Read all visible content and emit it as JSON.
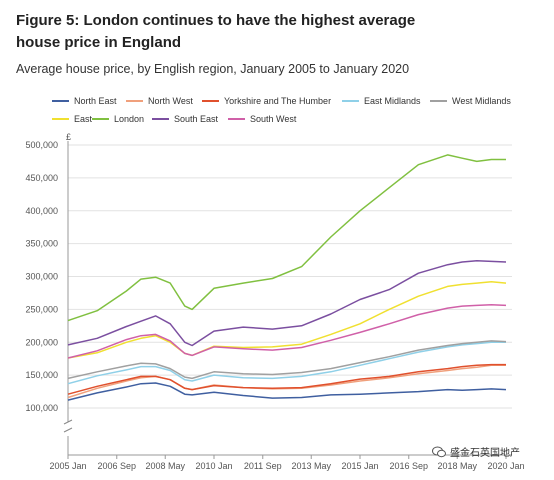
{
  "figure": {
    "title": "Figure 5: London continues to have the highest average house price in England",
    "subtitle": "Average house price, by English region, January 2005 to January 2020"
  },
  "watermark": {
    "text": "盛金石英国地产"
  },
  "chart_data": {
    "type": "line",
    "title": "Figure 5: London continues to have the highest average house price in England",
    "subtitle": "Average house price, by English region, January 2005 to January 2020",
    "ylabel": "£",
    "xlabel": "",
    "ylim": [
      100000,
      500000
    ],
    "y_axis_break": true,
    "y_ticks": [
      100000,
      150000,
      200000,
      250000,
      300000,
      350000,
      400000,
      450000,
      500000
    ],
    "y_tick_labels": [
      "100,000",
      "150,000",
      "200,000",
      "250,000",
      "300,000",
      "350,000",
      "400,000",
      "450,000",
      "500,000"
    ],
    "x_ticks": [
      2005.0,
      2006.67,
      2008.33,
      2010.0,
      2011.67,
      2013.33,
      2015.0,
      2016.67,
      2018.33,
      2020.0
    ],
    "x_tick_labels": [
      "2005 Jan",
      "2006 Sep",
      "2008 May",
      "2010 Jan",
      "2011 Sep",
      "2013 May",
      "2015 Jan",
      "2016 Sep",
      "2018 May",
      "2020 Jan"
    ],
    "xlim": [
      2005.0,
      2020.0
    ],
    "grid": "horizontal",
    "legend_position": "top",
    "x": [
      2005.0,
      2006.0,
      2007.0,
      2007.5,
      2008.0,
      2008.5,
      2009.0,
      2009.25,
      2010.0,
      2011.0,
      2012.0,
      2013.0,
      2014.0,
      2015.0,
      2016.0,
      2017.0,
      2018.0,
      2018.5,
      2019.0,
      2019.5,
      2020.0
    ],
    "series": [
      {
        "name": "North East",
        "color": "#3f5fa0",
        "values": [
          112000,
          123000,
          132000,
          137000,
          138000,
          133000,
          121000,
          120000,
          124000,
          119000,
          115000,
          116000,
          120000,
          121000,
          123000,
          125000,
          128000,
          127000,
          128000,
          129000,
          128000
        ]
      },
      {
        "name": "North West",
        "color": "#f0a07c",
        "values": [
          116000,
          130000,
          141000,
          146000,
          148000,
          143000,
          130000,
          128000,
          135000,
          131000,
          129000,
          130000,
          135000,
          141000,
          146000,
          152000,
          157000,
          160000,
          162000,
          165000,
          165000
        ]
      },
      {
        "name": "Yorkshire and The Humber",
        "color": "#e0502d",
        "values": [
          121000,
          133000,
          143000,
          148000,
          148000,
          143000,
          130000,
          128000,
          134000,
          131000,
          130000,
          131000,
          137000,
          144000,
          148000,
          155000,
          160000,
          163000,
          165000,
          166000,
          166000
        ]
      },
      {
        "name": "East Midlands",
        "color": "#8fd0e8",
        "values": [
          137000,
          149000,
          158000,
          163000,
          163000,
          157000,
          143000,
          141000,
          150000,
          146000,
          145000,
          148000,
          155000,
          165000,
          175000,
          185000,
          193000,
          196000,
          198000,
          200000,
          200000
        ]
      },
      {
        "name": "West Midlands",
        "color": "#a0a0a0",
        "values": [
          145000,
          155000,
          164000,
          168000,
          167000,
          160000,
          147000,
          145000,
          155000,
          152000,
          151000,
          154000,
          160000,
          169000,
          178000,
          188000,
          195000,
          198000,
          200000,
          202000,
          201000
        ]
      },
      {
        "name": "East",
        "color": "#f0e030",
        "values": [
          176000,
          184000,
          200000,
          206000,
          210000,
          200000,
          183000,
          180000,
          194000,
          192000,
          193000,
          197000,
          212000,
          228000,
          250000,
          270000,
          285000,
          288000,
          290000,
          292000,
          290000
        ]
      },
      {
        "name": "London",
        "color": "#80c040",
        "values": [
          233000,
          248000,
          278000,
          296000,
          299000,
          290000,
          255000,
          250000,
          282000,
          290000,
          297000,
          315000,
          360000,
          400000,
          435000,
          470000,
          485000,
          480000,
          475000,
          478000,
          478000
        ]
      },
      {
        "name": "South East",
        "color": "#7b4fa0",
        "values": [
          196000,
          206000,
          224000,
          232000,
          240000,
          228000,
          200000,
          195000,
          217000,
          223000,
          220000,
          225000,
          243000,
          265000,
          280000,
          305000,
          318000,
          322000,
          324000,
          323000,
          322000
        ]
      },
      {
        "name": "South West",
        "color": "#d060a8",
        "values": [
          176000,
          187000,
          204000,
          210000,
          212000,
          202000,
          183000,
          180000,
          193000,
          190000,
          188000,
          192000,
          203000,
          215000,
          228000,
          242000,
          252000,
          255000,
          256000,
          257000,
          256000
        ]
      }
    ]
  }
}
